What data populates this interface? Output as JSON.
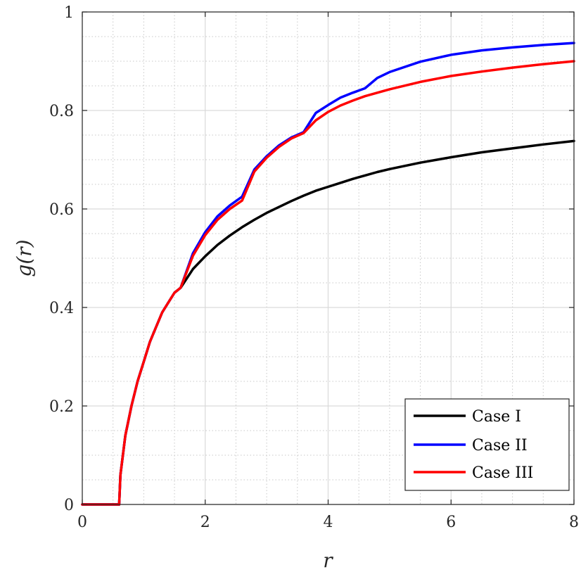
{
  "chart_data": {
    "type": "line",
    "title": "",
    "xlabel": "r",
    "ylabel": "g(r)",
    "xlim": [
      0,
      8
    ],
    "ylim": [
      0,
      1
    ],
    "xticks": [
      0,
      2,
      4,
      6,
      8
    ],
    "xtick_labels": [
      "0",
      "2",
      "4",
      "6",
      "8"
    ],
    "yticks": [
      0,
      0.2,
      0.4,
      0.6,
      0.8,
      1
    ],
    "ytick_labels": [
      "0",
      "0.2",
      "0.4",
      "0.6",
      "0.8",
      "1"
    ],
    "grid": true,
    "minor_grid": true,
    "legend_position": "bottom-right",
    "x": [
      0,
      0.3,
      0.6,
      0.61,
      0.62,
      0.7,
      0.8,
      0.9,
      1.0,
      1.1,
      1.2,
      1.3,
      1.4,
      1.5,
      1.6,
      1.8,
      2.0,
      2.2,
      2.4,
      2.6,
      2.8,
      3.0,
      3.2,
      3.4,
      3.6,
      3.8,
      4.0,
      4.2,
      4.4,
      4.6,
      4.8,
      5.0,
      5.5,
      6.0,
      6.5,
      7.0,
      7.5,
      8.0
    ],
    "series": [
      {
        "name": "Case I",
        "color": "#000000",
        "values": [
          0,
          0,
          0,
          0.03,
          0.06,
          0.14,
          0.2,
          0.25,
          0.29,
          0.33,
          0.36,
          0.39,
          0.41,
          0.43,
          0.44,
          0.478,
          0.504,
          0.527,
          0.546,
          0.563,
          0.578,
          0.592,
          0.604,
          0.616,
          0.627,
          0.637,
          0.645,
          0.653,
          0.661,
          0.668,
          0.675,
          0.681,
          0.694,
          0.705,
          0.715,
          0.723,
          0.731,
          0.738
        ]
      },
      {
        "name": "Case II",
        "color": "#0000ff",
        "values": [
          0,
          0,
          0,
          0.03,
          0.06,
          0.14,
          0.2,
          0.25,
          0.29,
          0.33,
          0.36,
          0.39,
          0.41,
          0.43,
          0.44,
          0.51,
          0.553,
          0.585,
          0.607,
          0.625,
          0.68,
          0.707,
          0.729,
          0.745,
          0.756,
          0.795,
          0.811,
          0.826,
          0.836,
          0.845,
          0.866,
          0.878,
          0.899,
          0.913,
          0.922,
          0.928,
          0.933,
          0.937
        ]
      },
      {
        "name": "Case III",
        "color": "#ff0000",
        "values": [
          0,
          0,
          0,
          0.03,
          0.06,
          0.14,
          0.2,
          0.25,
          0.29,
          0.33,
          0.36,
          0.39,
          0.41,
          0.43,
          0.44,
          0.505,
          0.547,
          0.578,
          0.6,
          0.617,
          0.676,
          0.704,
          0.726,
          0.743,
          0.754,
          0.78,
          0.797,
          0.81,
          0.82,
          0.829,
          0.836,
          0.843,
          0.858,
          0.87,
          0.879,
          0.887,
          0.894,
          0.9
        ]
      }
    ]
  }
}
